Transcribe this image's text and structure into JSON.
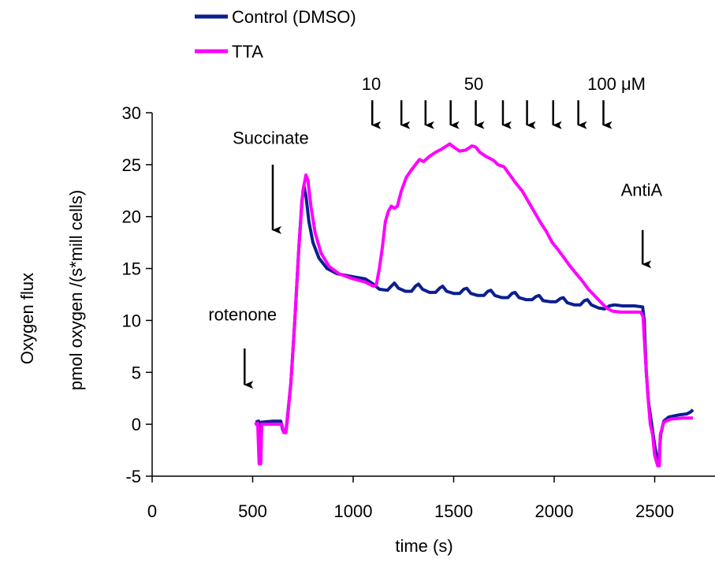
{
  "chart_data": {
    "type": "line",
    "title": "",
    "xlabel": "time (s)",
    "ylabel_lines": [
      "Oxygen flux",
      "pmol oxygen /(s*mill cells)"
    ],
    "xlim": [
      0,
      2800
    ],
    "ylim": [
      -5,
      30
    ],
    "x_ticks": [
      0,
      500,
      1000,
      1500,
      2000,
      2500
    ],
    "y_ticks": [
      -5,
      0,
      5,
      10,
      15,
      20,
      25,
      30
    ],
    "grid": false,
    "legend_position": "top-left",
    "series": [
      {
        "name": "Control (DMSO)",
        "color": "#0a1f8f",
        "points": [
          [
            515,
            0.2
          ],
          [
            530,
            0.3
          ],
          [
            535,
            -3.5
          ],
          [
            540,
            -3.6
          ],
          [
            545,
            0.2
          ],
          [
            600,
            0.3
          ],
          [
            640,
            0.3
          ],
          [
            650,
            -0.6
          ],
          [
            665,
            -0.7
          ],
          [
            672,
            0.5
          ],
          [
            690,
            4
          ],
          [
            710,
            10
          ],
          [
            730,
            17
          ],
          [
            745,
            21.5
          ],
          [
            755,
            23
          ],
          [
            765,
            22
          ],
          [
            780,
            19.5
          ],
          [
            800,
            17.5
          ],
          [
            830,
            16
          ],
          [
            870,
            15
          ],
          [
            920,
            14.5
          ],
          [
            1000,
            14.2
          ],
          [
            1060,
            14
          ],
          [
            1100,
            13.5
          ],
          [
            1130,
            13
          ],
          [
            1170,
            12.9
          ],
          [
            1190,
            13.3
          ],
          [
            1205,
            13.6
          ],
          [
            1225,
            13.1
          ],
          [
            1260,
            12.8
          ],
          [
            1290,
            12.8
          ],
          [
            1310,
            13.3
          ],
          [
            1325,
            13.5
          ],
          [
            1345,
            13
          ],
          [
            1380,
            12.7
          ],
          [
            1410,
            12.7
          ],
          [
            1430,
            13.1
          ],
          [
            1445,
            13.3
          ],
          [
            1465,
            12.8
          ],
          [
            1500,
            12.6
          ],
          [
            1530,
            12.6
          ],
          [
            1550,
            13
          ],
          [
            1565,
            13.1
          ],
          [
            1585,
            12.6
          ],
          [
            1620,
            12.4
          ],
          [
            1650,
            12.4
          ],
          [
            1670,
            12.8
          ],
          [
            1685,
            12.9
          ],
          [
            1705,
            12.4
          ],
          [
            1740,
            12.2
          ],
          [
            1770,
            12.2
          ],
          [
            1790,
            12.6
          ],
          [
            1805,
            12.7
          ],
          [
            1825,
            12.2
          ],
          [
            1860,
            12
          ],
          [
            1890,
            12
          ],
          [
            1910,
            12.3
          ],
          [
            1925,
            12.4
          ],
          [
            1945,
            11.9
          ],
          [
            1980,
            11.8
          ],
          [
            2010,
            11.8
          ],
          [
            2030,
            12.1
          ],
          [
            2045,
            12.2
          ],
          [
            2065,
            11.7
          ],
          [
            2100,
            11.5
          ],
          [
            2130,
            11.5
          ],
          [
            2150,
            11.9
          ],
          [
            2165,
            12
          ],
          [
            2185,
            11.5
          ],
          [
            2220,
            11.2
          ],
          [
            2250,
            11.1
          ],
          [
            2275,
            11.4
          ],
          [
            2300,
            11.5
          ],
          [
            2340,
            11.4
          ],
          [
            2400,
            11.4
          ],
          [
            2440,
            11.3
          ],
          [
            2448,
            10
          ],
          [
            2458,
            5
          ],
          [
            2470,
            2
          ],
          [
            2485,
            0
          ],
          [
            2500,
            -2
          ],
          [
            2512,
            -3.5
          ],
          [
            2520,
            -3.6
          ],
          [
            2530,
            -1
          ],
          [
            2545,
            0.3
          ],
          [
            2570,
            0.7
          ],
          [
            2620,
            0.9
          ],
          [
            2660,
            1
          ],
          [
            2680,
            1.2
          ],
          [
            2690,
            1.4
          ]
        ]
      },
      {
        "name": "TTA",
        "color": "#ff00ff",
        "points": [
          [
            510,
            0
          ],
          [
            525,
            0.1
          ],
          [
            532,
            -3.8
          ],
          [
            540,
            -3.8
          ],
          [
            545,
            0
          ],
          [
            600,
            0
          ],
          [
            645,
            0
          ],
          [
            655,
            -0.8
          ],
          [
            665,
            -0.8
          ],
          [
            672,
            0.3
          ],
          [
            690,
            4
          ],
          [
            710,
            10
          ],
          [
            730,
            17
          ],
          [
            750,
            22.5
          ],
          [
            765,
            24
          ],
          [
            775,
            23.5
          ],
          [
            790,
            21
          ],
          [
            810,
            18.5
          ],
          [
            840,
            16.5
          ],
          [
            880,
            15.2
          ],
          [
            930,
            14.5
          ],
          [
            1000,
            14
          ],
          [
            1060,
            13.7
          ],
          [
            1100,
            13.3
          ],
          [
            1115,
            13.4
          ],
          [
            1130,
            15
          ],
          [
            1145,
            17
          ],
          [
            1160,
            19.5
          ],
          [
            1175,
            20.5
          ],
          [
            1190,
            21
          ],
          [
            1205,
            20.8
          ],
          [
            1220,
            21
          ],
          [
            1240,
            22.5
          ],
          [
            1265,
            23.8
          ],
          [
            1290,
            24.5
          ],
          [
            1310,
            25
          ],
          [
            1330,
            25.5
          ],
          [
            1350,
            25.3
          ],
          [
            1380,
            25.8
          ],
          [
            1410,
            26.2
          ],
          [
            1440,
            26.5
          ],
          [
            1465,
            26.8
          ],
          [
            1480,
            27
          ],
          [
            1500,
            26.7
          ],
          [
            1530,
            26.3
          ],
          [
            1560,
            26.4
          ],
          [
            1590,
            26.8
          ],
          [
            1610,
            26.7
          ],
          [
            1630,
            26.2
          ],
          [
            1660,
            25.8
          ],
          [
            1700,
            25.4
          ],
          [
            1720,
            25
          ],
          [
            1750,
            24.8
          ],
          [
            1780,
            24
          ],
          [
            1810,
            23.2
          ],
          [
            1840,
            22.5
          ],
          [
            1870,
            21.5
          ],
          [
            1900,
            20.5
          ],
          [
            1930,
            19.5
          ],
          [
            1960,
            18.6
          ],
          [
            1990,
            17.5
          ],
          [
            2020,
            16.8
          ],
          [
            2050,
            16
          ],
          [
            2080,
            15.2
          ],
          [
            2110,
            14.5
          ],
          [
            2140,
            13.8
          ],
          [
            2170,
            13
          ],
          [
            2200,
            12.4
          ],
          [
            2230,
            11.8
          ],
          [
            2260,
            11.2
          ],
          [
            2290,
            10.9
          ],
          [
            2330,
            10.8
          ],
          [
            2380,
            10.8
          ],
          [
            2430,
            10.8
          ],
          [
            2442,
            10.4
          ],
          [
            2452,
            7
          ],
          [
            2465,
            3
          ],
          [
            2478,
            0
          ],
          [
            2490,
            -1
          ],
          [
            2500,
            -3
          ],
          [
            2515,
            -4
          ],
          [
            2523,
            -4
          ],
          [
            2528,
            -1
          ],
          [
            2545,
            0.2
          ],
          [
            2580,
            0.5
          ],
          [
            2640,
            0.6
          ],
          [
            2690,
            0.6
          ]
        ]
      }
    ],
    "annotations": [
      {
        "text": "rotenone",
        "x": 450,
        "y": 10
      },
      {
        "text": "Succinate",
        "x": 590,
        "y": 27
      },
      {
        "text": "AntiA",
        "x": 2435,
        "y": 22
      },
      {
        "text": "10",
        "x": 1090,
        "y": 32.2
      },
      {
        "text": "50",
        "x": 1600,
        "y": 32.2
      },
      {
        "text": "100 μM",
        "x": 2310,
        "y": 32.2
      }
    ],
    "arrows": [
      {
        "name": "rotenone",
        "x": 460,
        "y_top": 7.3,
        "y_bottom": 3.8
      },
      {
        "name": "succinate",
        "x": 600,
        "y_top": 25,
        "y_bottom": 18.7
      },
      {
        "name": "antia",
        "x": 2440,
        "y_top": 18.7,
        "y_bottom": 15.4
      },
      {
        "name": "dose-1",
        "x": 1095,
        "y_top": 31.2,
        "y_bottom": 28.8
      },
      {
        "name": "dose-2",
        "x": 1240,
        "y_top": 31.2,
        "y_bottom": 28.8
      },
      {
        "name": "dose-3",
        "x": 1360,
        "y_top": 31.2,
        "y_bottom": 28.8
      },
      {
        "name": "dose-4",
        "x": 1485,
        "y_top": 31.2,
        "y_bottom": 28.8
      },
      {
        "name": "dose-5",
        "x": 1610,
        "y_top": 31.2,
        "y_bottom": 28.8
      },
      {
        "name": "dose-6",
        "x": 1745,
        "y_top": 31.2,
        "y_bottom": 28.8
      },
      {
        "name": "dose-7",
        "x": 1865,
        "y_top": 31.2,
        "y_bottom": 28.8
      },
      {
        "name": "dose-8",
        "x": 1995,
        "y_top": 31.2,
        "y_bottom": 28.8
      },
      {
        "name": "dose-9",
        "x": 2120,
        "y_top": 31.2,
        "y_bottom": 28.8
      },
      {
        "name": "dose-10",
        "x": 2245,
        "y_top": 31.2,
        "y_bottom": 28.8
      }
    ]
  }
}
